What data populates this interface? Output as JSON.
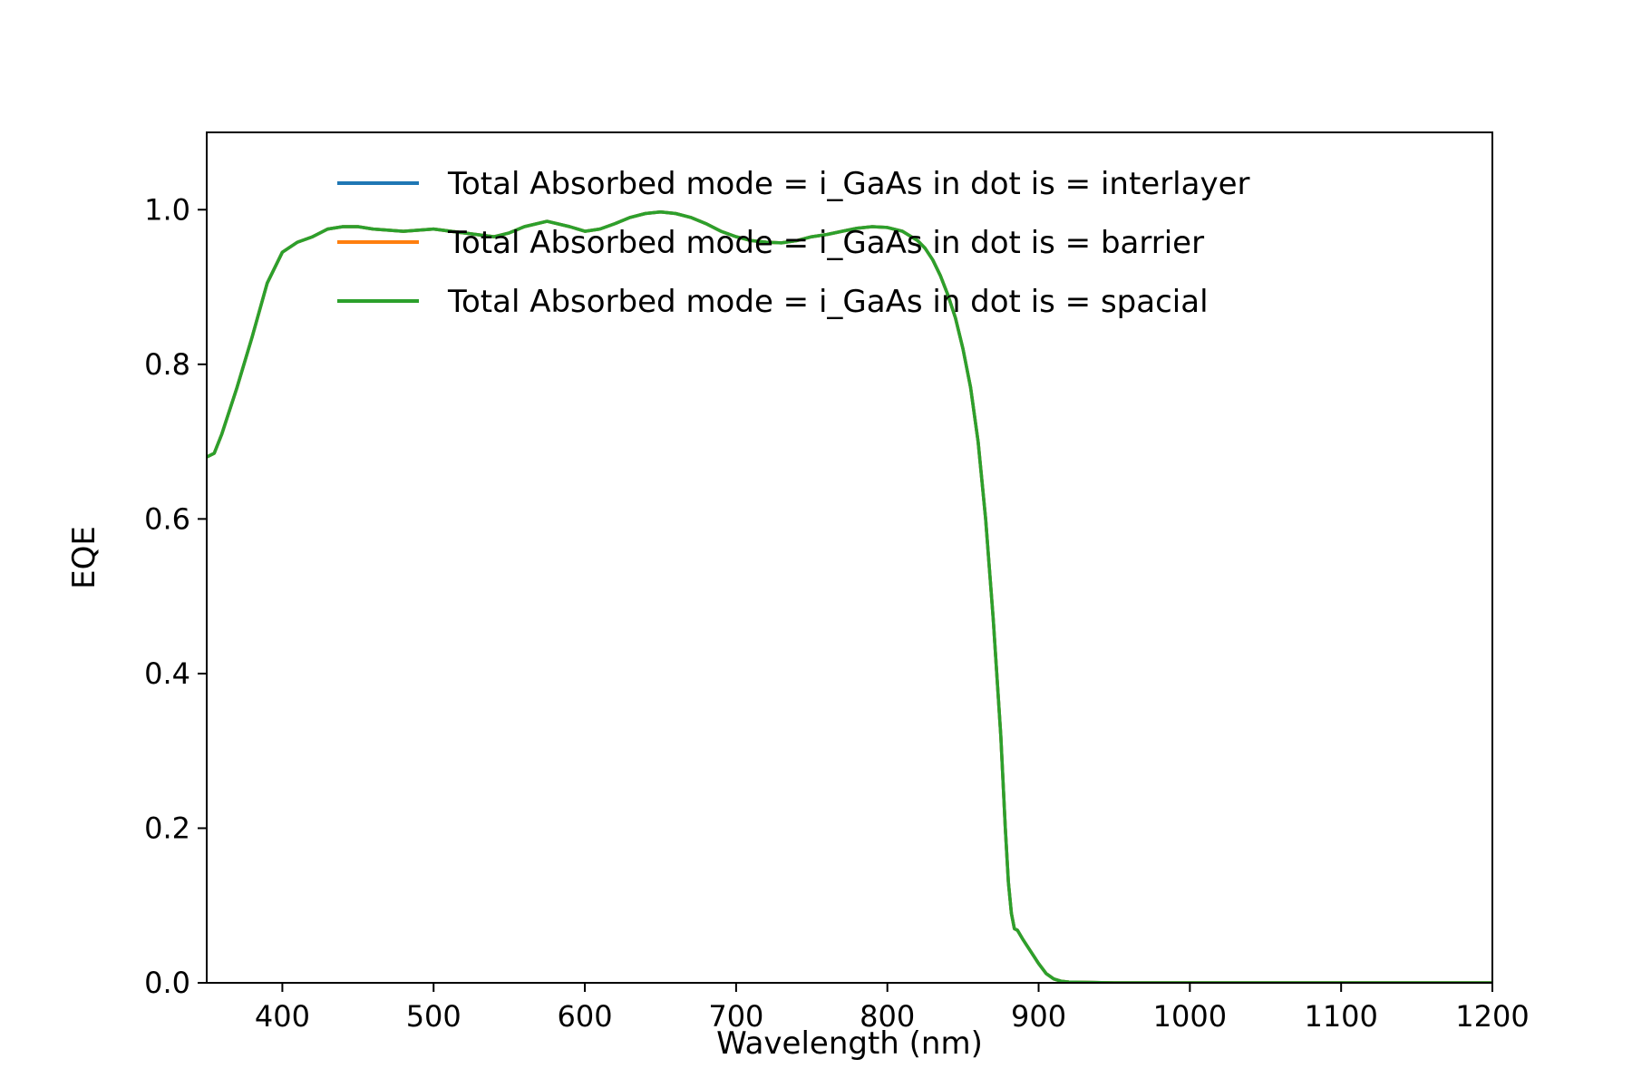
{
  "chart_data": {
    "type": "line",
    "title": "",
    "xlabel": "Wavelength (nm)",
    "ylabel": "EQE",
    "xlim": [
      350,
      1200
    ],
    "ylim": [
      0,
      1.1
    ],
    "xticks": [
      400,
      500,
      600,
      700,
      800,
      900,
      1000,
      1100,
      1200
    ],
    "yticks": [
      0.0,
      0.2,
      0.4,
      0.6,
      0.8,
      1.0
    ],
    "ytick_labels": [
      "0.0",
      "0.2",
      "0.4",
      "0.6",
      "0.8",
      "1.0"
    ],
    "grid": false,
    "legend_position": "top-right",
    "x": [
      350,
      355,
      360,
      370,
      380,
      390,
      400,
      410,
      420,
      430,
      440,
      450,
      460,
      480,
      500,
      520,
      540,
      550,
      560,
      575,
      590,
      600,
      610,
      620,
      630,
      640,
      650,
      660,
      670,
      680,
      690,
      700,
      710,
      720,
      730,
      740,
      750,
      760,
      770,
      780,
      790,
      800,
      810,
      820,
      825,
      830,
      835,
      840,
      845,
      850,
      855,
      860,
      865,
      870,
      875,
      878,
      880,
      882,
      884,
      886,
      890,
      895,
      900,
      905,
      910,
      915,
      920,
      950,
      1000,
      1050,
      1100,
      1150,
      1200
    ],
    "series": [
      {
        "name": "Total Absorbed mode = i_GaAs in dot is = interlayer",
        "color": "#1f77b4",
        "values": [
          0.68,
          0.685,
          0.71,
          0.77,
          0.835,
          0.905,
          0.945,
          0.958,
          0.965,
          0.975,
          0.978,
          0.978,
          0.975,
          0.972,
          0.975,
          0.97,
          0.965,
          0.97,
          0.978,
          0.985,
          0.978,
          0.972,
          0.975,
          0.982,
          0.99,
          0.995,
          0.997,
          0.995,
          0.99,
          0.982,
          0.972,
          0.965,
          0.96,
          0.958,
          0.957,
          0.96,
          0.965,
          0.968,
          0.972,
          0.976,
          0.978,
          0.977,
          0.972,
          0.96,
          0.95,
          0.935,
          0.915,
          0.89,
          0.86,
          0.82,
          0.77,
          0.7,
          0.6,
          0.47,
          0.32,
          0.2,
          0.13,
          0.09,
          0.07,
          0.068,
          0.055,
          0.04,
          0.025,
          0.012,
          0.005,
          0.002,
          0.001,
          0.0,
          0.0,
          0.0,
          0.0,
          0.0,
          0.0
        ]
      },
      {
        "name": "Total Absorbed mode = i_GaAs in dot is = barrier",
        "color": "#ff7f0e",
        "values": [
          0.68,
          0.685,
          0.71,
          0.77,
          0.835,
          0.905,
          0.945,
          0.958,
          0.965,
          0.975,
          0.978,
          0.978,
          0.975,
          0.972,
          0.975,
          0.97,
          0.965,
          0.97,
          0.978,
          0.985,
          0.978,
          0.972,
          0.975,
          0.982,
          0.99,
          0.995,
          0.997,
          0.995,
          0.99,
          0.982,
          0.972,
          0.965,
          0.96,
          0.958,
          0.957,
          0.96,
          0.965,
          0.968,
          0.972,
          0.976,
          0.978,
          0.977,
          0.972,
          0.96,
          0.95,
          0.935,
          0.915,
          0.89,
          0.86,
          0.82,
          0.77,
          0.7,
          0.6,
          0.47,
          0.32,
          0.2,
          0.13,
          0.09,
          0.07,
          0.068,
          0.055,
          0.04,
          0.025,
          0.012,
          0.005,
          0.002,
          0.001,
          0.0,
          0.0,
          0.0,
          0.0,
          0.0,
          0.0
        ]
      },
      {
        "name": "Total Absorbed mode = i_GaAs in dot is = spacial",
        "color": "#2ca02c",
        "values": [
          0.68,
          0.685,
          0.71,
          0.77,
          0.835,
          0.905,
          0.945,
          0.958,
          0.965,
          0.975,
          0.978,
          0.978,
          0.975,
          0.972,
          0.975,
          0.97,
          0.965,
          0.97,
          0.978,
          0.985,
          0.978,
          0.972,
          0.975,
          0.982,
          0.99,
          0.995,
          0.997,
          0.995,
          0.99,
          0.982,
          0.972,
          0.965,
          0.96,
          0.958,
          0.957,
          0.96,
          0.965,
          0.968,
          0.972,
          0.976,
          0.978,
          0.977,
          0.972,
          0.96,
          0.95,
          0.935,
          0.915,
          0.89,
          0.86,
          0.82,
          0.77,
          0.7,
          0.6,
          0.47,
          0.32,
          0.2,
          0.13,
          0.09,
          0.07,
          0.068,
          0.055,
          0.04,
          0.025,
          0.012,
          0.005,
          0.002,
          0.001,
          0.0,
          0.0,
          0.0,
          0.0,
          0.0,
          0.0
        ]
      }
    ]
  }
}
